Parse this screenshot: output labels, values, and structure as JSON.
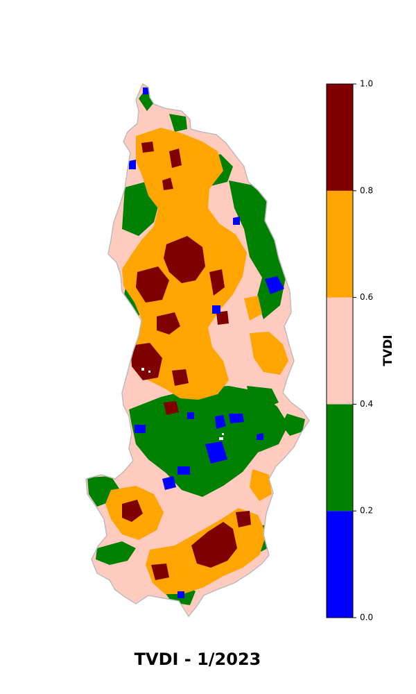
{
  "title": "TVDI - 1/2023",
  "colorbar": {
    "label": "TVDI",
    "ticks": [
      "0.0",
      "0.2",
      "0.4",
      "0.6",
      "0.8",
      "1.0"
    ],
    "classes": [
      {
        "from": 0.0,
        "to": 0.2,
        "color": "#0000ff"
      },
      {
        "from": 0.2,
        "to": 0.4,
        "color": "#008000"
      },
      {
        "from": 0.4,
        "to": 0.6,
        "color": "#ffcbbf"
      },
      {
        "from": 0.6,
        "to": 0.8,
        "color": "#ffa500"
      },
      {
        "from": 0.8,
        "to": 1.0,
        "color": "#800000"
      }
    ]
  }
}
